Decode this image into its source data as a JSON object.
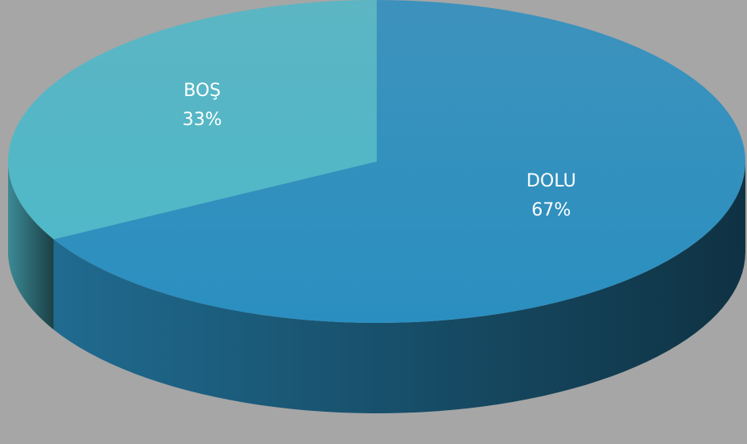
{
  "chart_data": {
    "type": "pie",
    "categories": [
      "DOLU",
      "BOŞ"
    ],
    "values": [
      67,
      33
    ],
    "value_labels": [
      "67%",
      "33%"
    ],
    "colors": [
      "#2a8fc0",
      "#4fb8c8"
    ]
  }
}
